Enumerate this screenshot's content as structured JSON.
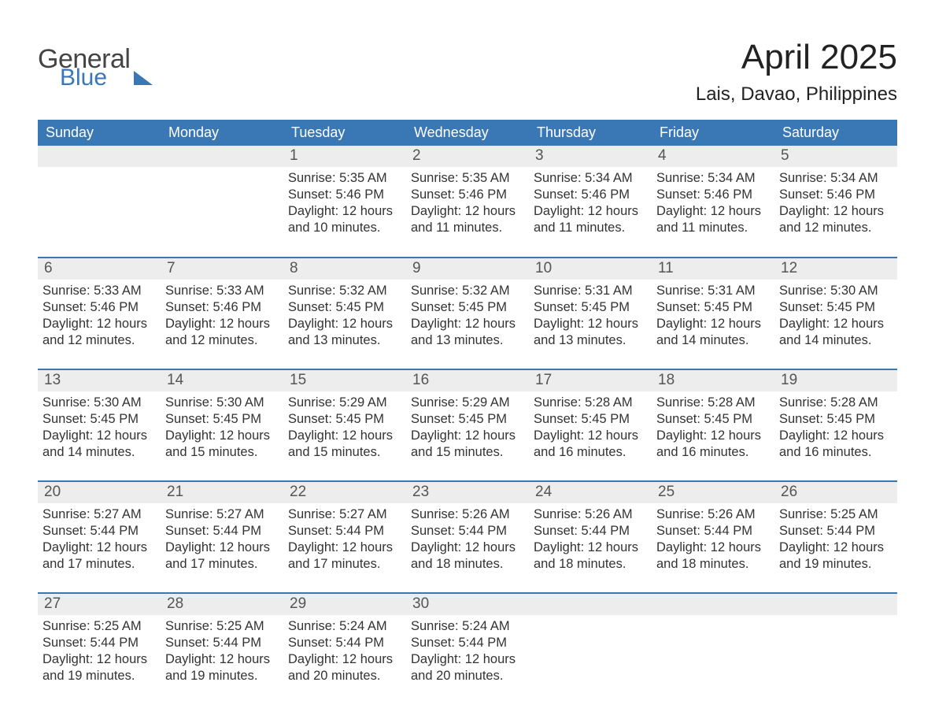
{
  "brand": {
    "word1": "General",
    "word2": "Blue",
    "accent_color": "#3a78b5"
  },
  "title": "April 2025",
  "location": "Lais, Davao, Philippines",
  "colors": {
    "header_bg": "#3a78b5",
    "header_fg": "#ffffff",
    "daynum_bg": "#ededed",
    "row_divider": "#3a78b5",
    "text": "#333333",
    "background": "#ffffff"
  },
  "calendar": {
    "type": "table",
    "columns": [
      "Sunday",
      "Monday",
      "Tuesday",
      "Wednesday",
      "Thursday",
      "Friday",
      "Saturday"
    ],
    "weeks": [
      [
        null,
        null,
        {
          "n": 1,
          "sunrise": "5:35 AM",
          "sunset": "5:46 PM",
          "daylight": "12 hours and 10 minutes."
        },
        {
          "n": 2,
          "sunrise": "5:35 AM",
          "sunset": "5:46 PM",
          "daylight": "12 hours and 11 minutes."
        },
        {
          "n": 3,
          "sunrise": "5:34 AM",
          "sunset": "5:46 PM",
          "daylight": "12 hours and 11 minutes."
        },
        {
          "n": 4,
          "sunrise": "5:34 AM",
          "sunset": "5:46 PM",
          "daylight": "12 hours and 11 minutes."
        },
        {
          "n": 5,
          "sunrise": "5:34 AM",
          "sunset": "5:46 PM",
          "daylight": "12 hours and 12 minutes."
        }
      ],
      [
        {
          "n": 6,
          "sunrise": "5:33 AM",
          "sunset": "5:46 PM",
          "daylight": "12 hours and 12 minutes."
        },
        {
          "n": 7,
          "sunrise": "5:33 AM",
          "sunset": "5:46 PM",
          "daylight": "12 hours and 12 minutes."
        },
        {
          "n": 8,
          "sunrise": "5:32 AM",
          "sunset": "5:45 PM",
          "daylight": "12 hours and 13 minutes."
        },
        {
          "n": 9,
          "sunrise": "5:32 AM",
          "sunset": "5:45 PM",
          "daylight": "12 hours and 13 minutes."
        },
        {
          "n": 10,
          "sunrise": "5:31 AM",
          "sunset": "5:45 PM",
          "daylight": "12 hours and 13 minutes."
        },
        {
          "n": 11,
          "sunrise": "5:31 AM",
          "sunset": "5:45 PM",
          "daylight": "12 hours and 14 minutes."
        },
        {
          "n": 12,
          "sunrise": "5:30 AM",
          "sunset": "5:45 PM",
          "daylight": "12 hours and 14 minutes."
        }
      ],
      [
        {
          "n": 13,
          "sunrise": "5:30 AM",
          "sunset": "5:45 PM",
          "daylight": "12 hours and 14 minutes."
        },
        {
          "n": 14,
          "sunrise": "5:30 AM",
          "sunset": "5:45 PM",
          "daylight": "12 hours and 15 minutes."
        },
        {
          "n": 15,
          "sunrise": "5:29 AM",
          "sunset": "5:45 PM",
          "daylight": "12 hours and 15 minutes."
        },
        {
          "n": 16,
          "sunrise": "5:29 AM",
          "sunset": "5:45 PM",
          "daylight": "12 hours and 15 minutes."
        },
        {
          "n": 17,
          "sunrise": "5:28 AM",
          "sunset": "5:45 PM",
          "daylight": "12 hours and 16 minutes."
        },
        {
          "n": 18,
          "sunrise": "5:28 AM",
          "sunset": "5:45 PM",
          "daylight": "12 hours and 16 minutes."
        },
        {
          "n": 19,
          "sunrise": "5:28 AM",
          "sunset": "5:45 PM",
          "daylight": "12 hours and 16 minutes."
        }
      ],
      [
        {
          "n": 20,
          "sunrise": "5:27 AM",
          "sunset": "5:44 PM",
          "daylight": "12 hours and 17 minutes."
        },
        {
          "n": 21,
          "sunrise": "5:27 AM",
          "sunset": "5:44 PM",
          "daylight": "12 hours and 17 minutes."
        },
        {
          "n": 22,
          "sunrise": "5:27 AM",
          "sunset": "5:44 PM",
          "daylight": "12 hours and 17 minutes."
        },
        {
          "n": 23,
          "sunrise": "5:26 AM",
          "sunset": "5:44 PM",
          "daylight": "12 hours and 18 minutes."
        },
        {
          "n": 24,
          "sunrise": "5:26 AM",
          "sunset": "5:44 PM",
          "daylight": "12 hours and 18 minutes."
        },
        {
          "n": 25,
          "sunrise": "5:26 AM",
          "sunset": "5:44 PM",
          "daylight": "12 hours and 18 minutes."
        },
        {
          "n": 26,
          "sunrise": "5:25 AM",
          "sunset": "5:44 PM",
          "daylight": "12 hours and 19 minutes."
        }
      ],
      [
        {
          "n": 27,
          "sunrise": "5:25 AM",
          "sunset": "5:44 PM",
          "daylight": "12 hours and 19 minutes."
        },
        {
          "n": 28,
          "sunrise": "5:25 AM",
          "sunset": "5:44 PM",
          "daylight": "12 hours and 19 minutes."
        },
        {
          "n": 29,
          "sunrise": "5:24 AM",
          "sunset": "5:44 PM",
          "daylight": "12 hours and 20 minutes."
        },
        {
          "n": 30,
          "sunrise": "5:24 AM",
          "sunset": "5:44 PM",
          "daylight": "12 hours and 20 minutes."
        },
        null,
        null,
        null
      ]
    ],
    "labels": {
      "sunrise": "Sunrise:",
      "sunset": "Sunset:",
      "daylight": "Daylight:"
    }
  }
}
